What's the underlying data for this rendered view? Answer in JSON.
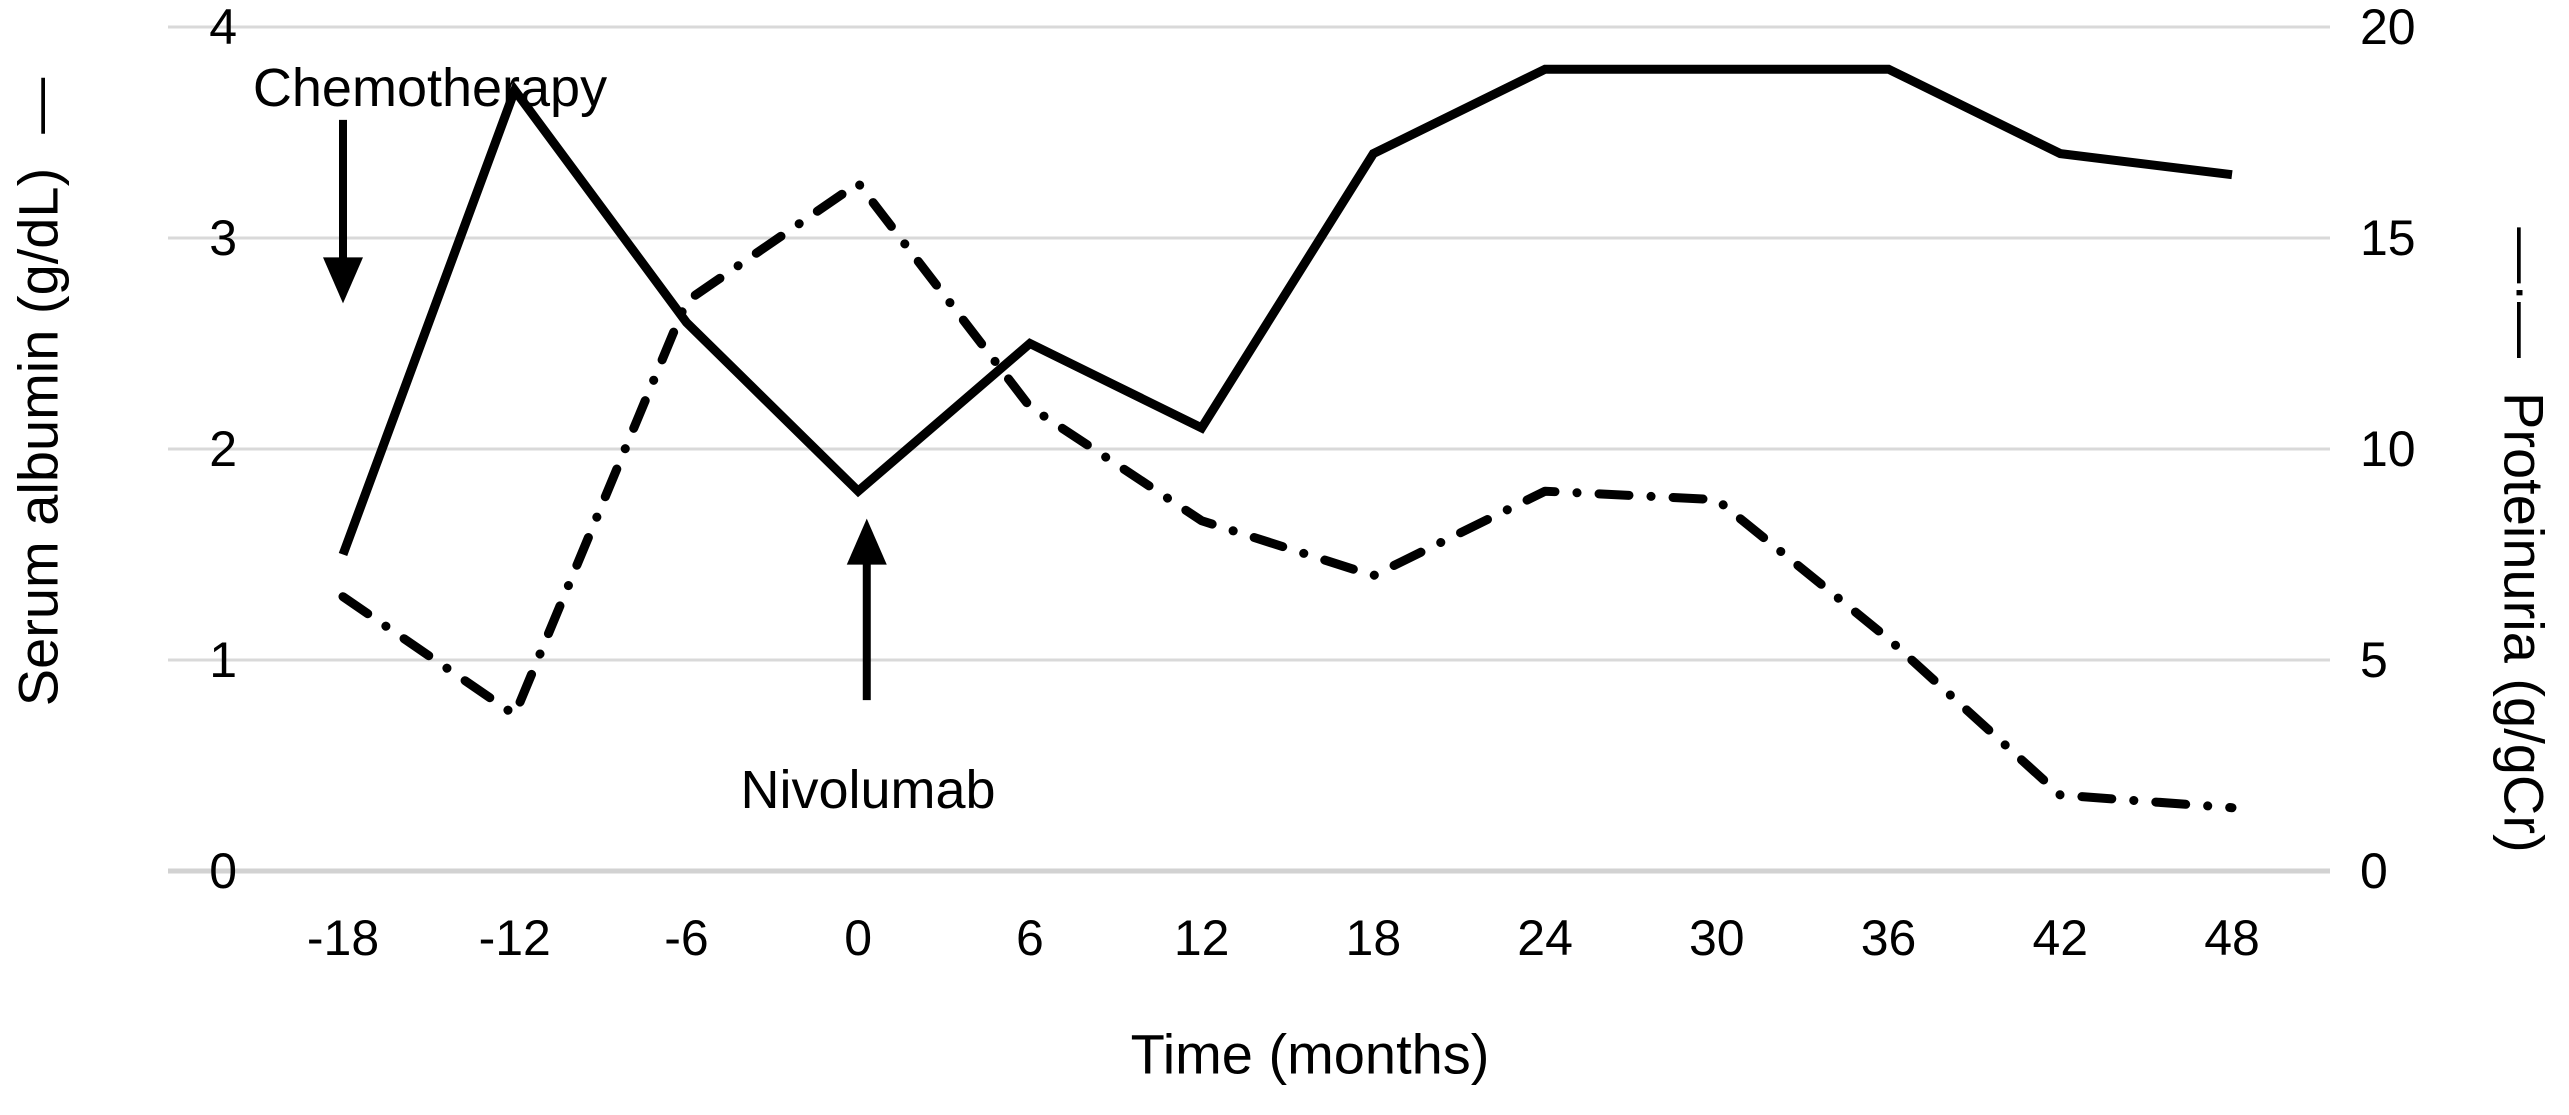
{
  "chart_data": {
    "type": "line",
    "title": "",
    "xlabel": "Time (months)",
    "x": [
      -18,
      -12,
      -6,
      0,
      6,
      12,
      18,
      24,
      30,
      36,
      42,
      48
    ],
    "x_tick_labels": [
      "-18",
      "-12",
      "-6",
      "0",
      "6",
      "12",
      "18",
      "24",
      "30",
      "36",
      "42",
      "48"
    ],
    "x_range": [
      -21,
      51
    ],
    "grid": "horizontal-only",
    "legend_position": "axis-titles",
    "y_left": {
      "legend_mark": "—",
      "label": "Serum albumin (g/dL)",
      "range": [
        0,
        4
      ],
      "ticks": [
        0,
        1,
        2,
        3,
        4
      ],
      "tick_labels": [
        "0",
        "1",
        "2",
        "3",
        "4"
      ]
    },
    "y_right": {
      "legend_mark": "—·—",
      "label": "Proteinuria (g/gCr)",
      "range": [
        0,
        20
      ],
      "ticks": [
        0,
        5,
        10,
        15,
        20
      ],
      "tick_labels": [
        "0",
        "5",
        "10",
        "15",
        "20"
      ]
    },
    "series": [
      {
        "name": "Serum albumin",
        "unit": "g/dL",
        "axis": "left",
        "line_style": "solid",
        "color": "#000000",
        "values": [
          1.5,
          3.7,
          2.6,
          1.8,
          2.5,
          2.1,
          3.4,
          3.8,
          3.8,
          3.8,
          3.4,
          3.3
        ]
      },
      {
        "name": "Proteinuria",
        "unit": "g/gCr",
        "axis": "right",
        "line_style": "dash-dot",
        "color": "#000000",
        "values": [
          6.5,
          3.7,
          13.5,
          16.3,
          11.0,
          8.3,
          7.0,
          9.0,
          8.8,
          5.5,
          1.8,
          1.5
        ]
      }
    ],
    "annotations": [
      {
        "text": "Chemotherapy",
        "x_month": -18,
        "arrow_from_left_axis_value": 3.56,
        "arrow_tip_left_axis_value": 2.69,
        "direction": "down"
      },
      {
        "text": "Nivolumab",
        "x_month": 0.3,
        "arrow_from_left_axis_value": 0.81,
        "arrow_tip_left_axis_value": 1.67,
        "direction": "up"
      }
    ],
    "colors": {
      "line": "#000000",
      "gridline": "#d9d9d9",
      "baseline": "#d2d2d2",
      "text": "#000000",
      "background": "#ffffff"
    }
  }
}
